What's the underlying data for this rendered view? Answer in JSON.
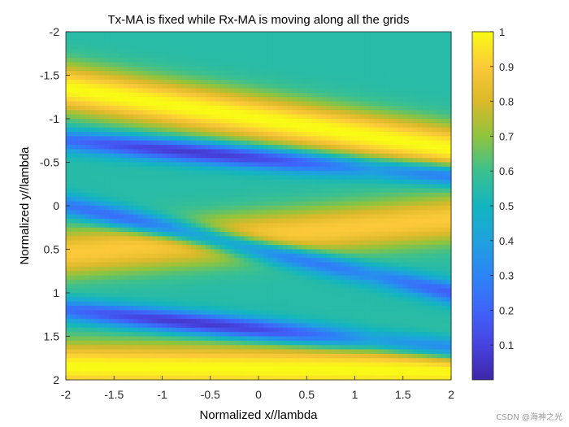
{
  "chart_data": {
    "type": "heatmap",
    "title": "Tx-MA is fixed while Rx-MA is moving along all the grids",
    "xlabel": "Normalized x//lambda",
    "ylabel": "Normalized y//lambda",
    "xlim": [
      -2,
      2
    ],
    "ylim": [
      -2,
      2
    ],
    "y_direction": "reverse",
    "xticks": [
      -2,
      -1.5,
      -1,
      -0.5,
      0,
      0.5,
      1,
      1.5,
      2
    ],
    "xtick_labels": [
      "-2",
      "-1.5",
      "-1",
      "-0.5",
      "0",
      "0.5",
      "1",
      "1.5",
      "2"
    ],
    "yticks": [
      -2,
      -1.5,
      -1,
      -0.5,
      0,
      0.5,
      1,
      1.5,
      2
    ],
    "ytick_labels": [
      "-2",
      "-1.5",
      "-1",
      "-0.5",
      "0",
      "0.5",
      "1",
      "1.5",
      "2"
    ],
    "colorbar": {
      "range": [
        0,
        1
      ],
      "ticks": [
        0.1,
        0.2,
        0.3,
        0.4,
        0.5,
        0.6,
        0.7,
        0.8,
        0.9,
        1
      ],
      "tick_labels": [
        "0.1",
        "0.2",
        "0.3",
        "0.4",
        "0.5",
        "0.6",
        "0.7",
        "0.8",
        "0.9",
        "1"
      ],
      "colormap": "parula"
    },
    "grid_resolution": 80,
    "field_description": "normalized channel gain vs Rx-MA position; diagonal bands sloping down-right",
    "peak_bands": [
      {
        "label": "upper bright band",
        "y_at_x_minus_2": -1.35,
        "y_at_x_plus_2": -0.65,
        "value": 1.0
      },
      {
        "label": "middle bright band",
        "y_at_x_minus_2": 0.55,
        "y_at_x_plus_2": 0.15,
        "value": 0.9
      },
      {
        "label": "lower bright band",
        "y_at_x_minus_2": 1.85,
        "y_at_x_plus_2": 1.9,
        "value": 1.0
      }
    ],
    "null_bands": [
      {
        "y_at_x_minus_2": -0.75,
        "y_at_x_plus_2": -0.35,
        "min_value": 0.05
      },
      {
        "y_at_x_minus_2": 0.0,
        "y_at_x_plus_2": 1.0,
        "min_value": 0.1
      },
      {
        "y_at_x_minus_2": 1.2,
        "y_at_x_plus_2": 1.65,
        "min_value": 0.05
      }
    ]
  },
  "watermark": "CSDN @海神之光"
}
